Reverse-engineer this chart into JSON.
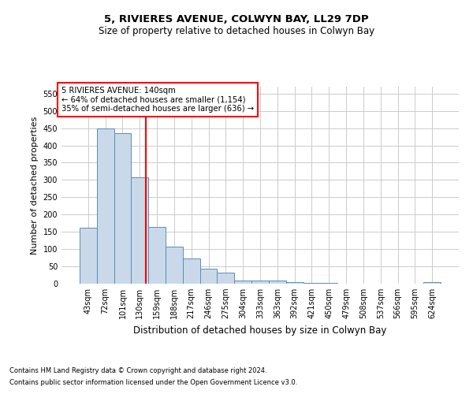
{
  "title": "5, RIVIERES AVENUE, COLWYN BAY, LL29 7DP",
  "subtitle": "Size of property relative to detached houses in Colwyn Bay",
  "xlabel": "Distribution of detached houses by size in Colwyn Bay",
  "ylabel": "Number of detached properties",
  "footnote1": "Contains HM Land Registry data © Crown copyright and database right 2024.",
  "footnote2": "Contains public sector information licensed under the Open Government Licence v3.0.",
  "annotation_line1": "5 RIVIERES AVENUE: 140sqm",
  "annotation_line2": "← 64% of detached houses are smaller (1,154)",
  "annotation_line3": "35% of semi-detached houses are larger (636) →",
  "bar_color": "#c9d9ea",
  "bar_edge_color": "#5b8db8",
  "redline_color": "red",
  "background_color": "#ffffff",
  "grid_color": "#cccccc",
  "categories": [
    "43sqm",
    "72sqm",
    "101sqm",
    "130sqm",
    "159sqm",
    "188sqm",
    "217sqm",
    "246sqm",
    "275sqm",
    "304sqm",
    "333sqm",
    "363sqm",
    "392sqm",
    "421sqm",
    "450sqm",
    "479sqm",
    "508sqm",
    "537sqm",
    "566sqm",
    "595sqm",
    "624sqm"
  ],
  "values": [
    163,
    450,
    435,
    307,
    165,
    107,
    73,
    44,
    33,
    10,
    10,
    8,
    5,
    2,
    2,
    1,
    1,
    1,
    1,
    0,
    4
  ],
  "ylim": [
    0,
    570
  ],
  "yticks": [
    0,
    50,
    100,
    150,
    200,
    250,
    300,
    350,
    400,
    450,
    500,
    550
  ],
  "redline_x": 3.34,
  "figsize": [
    6.0,
    5.0
  ],
  "dpi": 100
}
